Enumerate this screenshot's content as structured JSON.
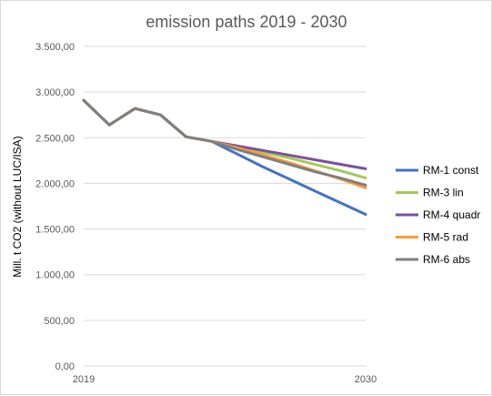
{
  "chart_data": {
    "type": "line",
    "title": "emission paths 2019 - 2030",
    "xlabel": "",
    "ylabel": "Mill. t CO2 (without LUC/ISA)",
    "x": [
      2019,
      2020,
      2021,
      2022,
      2023,
      2024,
      2025,
      2026,
      2027,
      2028,
      2029,
      2030
    ],
    "x_tick_labels": [
      "2019",
      "2030"
    ],
    "ylim": [
      0,
      3500
    ],
    "y_ticks": [
      0,
      500,
      1000,
      1500,
      2000,
      2500,
      3000,
      3500
    ],
    "y_tick_labels": [
      "0,00",
      "500,00",
      "1.000,00",
      "1.500,00",
      "2.000,00",
      "2.500,00",
      "3.000,00",
      "3.500,00"
    ],
    "grid": "horizontal",
    "legend_position": "right",
    "series": [
      {
        "name": "RM-1 const",
        "color": "#4472c4",
        "values": [
          2910,
          2640,
          2820,
          2750,
          2510,
          2460,
          2320,
          2180,
          2050,
          1920,
          1790,
          1660
        ]
      },
      {
        "name": "RM-3 lin",
        "color": "#a5c75a",
        "values": [
          2910,
          2640,
          2820,
          2750,
          2510,
          2460,
          2400,
          2340,
          2280,
          2210,
          2140,
          2060
        ]
      },
      {
        "name": "RM-4 quadr",
        "color": "#7a4fa0",
        "values": [
          2910,
          2640,
          2820,
          2750,
          2510,
          2460,
          2410,
          2360,
          2310,
          2260,
          2210,
          2160
        ]
      },
      {
        "name": "RM-5 rad",
        "color": "#ff9933",
        "values": [
          2910,
          2640,
          2820,
          2750,
          2510,
          2460,
          2390,
          2310,
          2230,
          2140,
          2050,
          1950
        ]
      },
      {
        "name": "RM-6 abs",
        "color": "#7f7f7f",
        "values": [
          2910,
          2640,
          2820,
          2750,
          2510,
          2460,
          2370,
          2290,
          2210,
          2130,
          2060,
          1980
        ]
      }
    ]
  }
}
